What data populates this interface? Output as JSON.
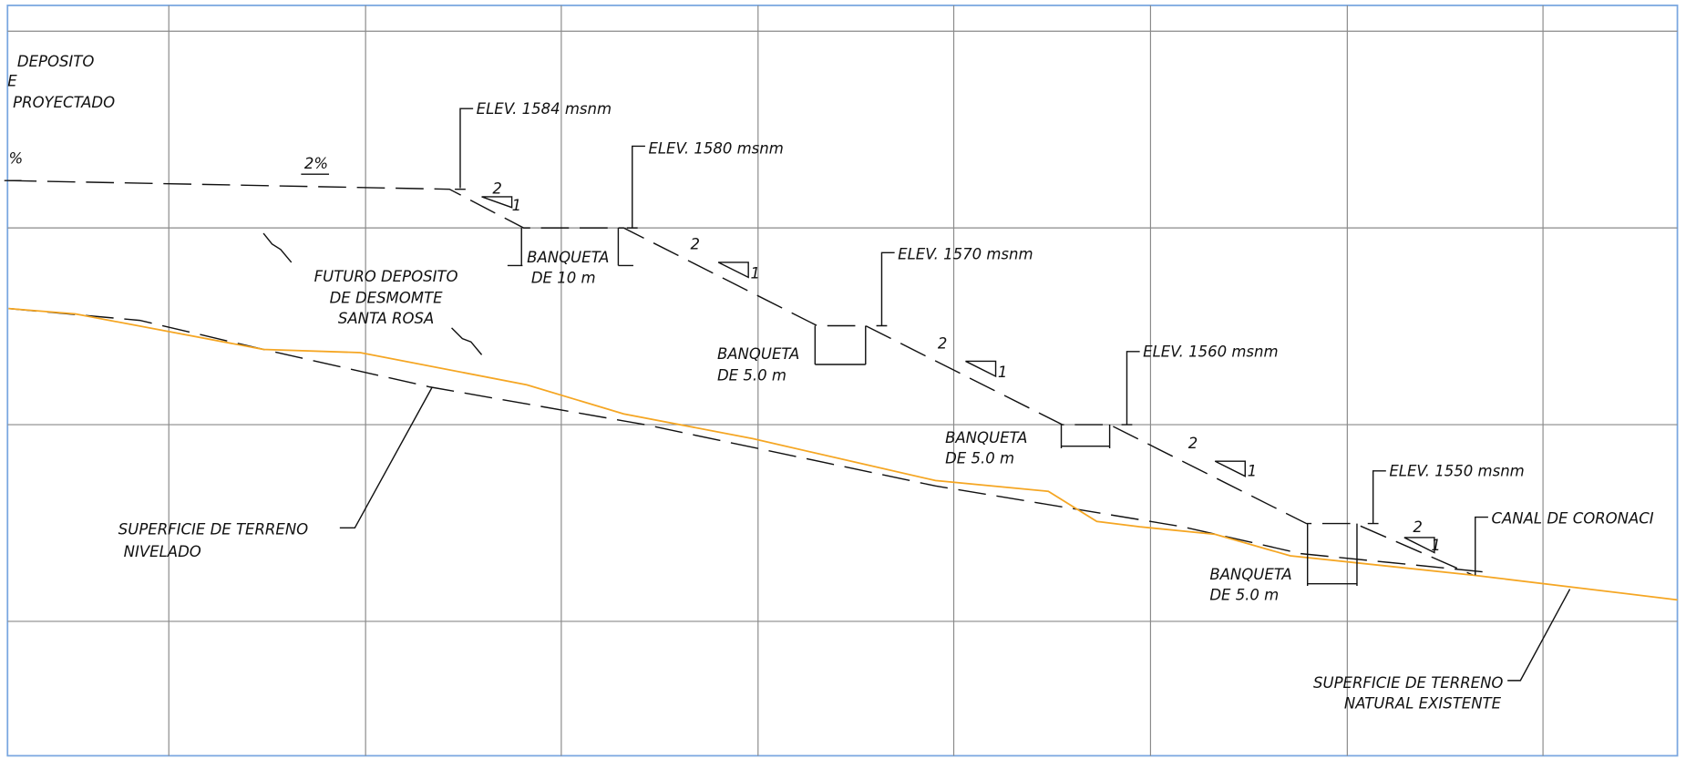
{
  "deposit_note": [
    "DEPOSITO",
    "E",
    "PROYECTADO"
  ],
  "grade_labels": [
    "%",
    "2%"
  ],
  "elevations": [
    "ELEV. 1584 msnm",
    "ELEV. 1580 msnm",
    "ELEV. 1570 msnm",
    "ELEV. 1560 msnm",
    "ELEV. 1550 msnm"
  ],
  "slopes": [
    [
      "2",
      "1"
    ],
    [
      "2",
      "1"
    ],
    [
      "2",
      "1"
    ],
    [
      "2",
      "1"
    ],
    [
      "2",
      "1"
    ]
  ],
  "banquetas": [
    {
      "label": "BANQUETA",
      "width": "DE 10 m"
    },
    {
      "label": "BANQUETA",
      "width": "DE 5.0 m"
    },
    {
      "label": "BANQUETA",
      "width": "DE 5.0 m"
    },
    {
      "label": "BANQUETA",
      "width": "DE 5.0 m"
    }
  ],
  "future_deposit": [
    "FUTURO DEPOSITO",
    "DE DESMOMTE",
    "SANTA ROSA"
  ],
  "leveled_surface": [
    "SUPERFICIE DE TERRENO",
    "NIVELADO"
  ],
  "natural_surface": [
    "SUPERFICIE DE TERRENO",
    "NATURAL EXISTENTE"
  ],
  "canal": "CANAL DE CORONACI"
}
